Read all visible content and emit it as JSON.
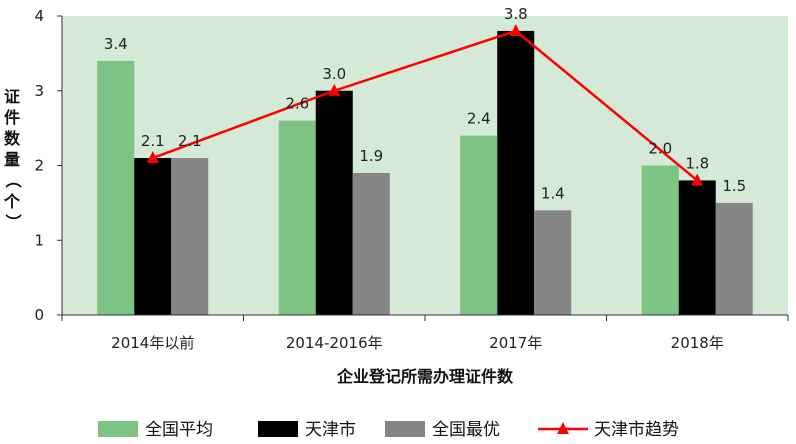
{
  "chart_data": {
    "type": "bar",
    "title": "",
    "xlabel": "企业登记所需办理证件数",
    "ylabel": "证件数量（个）",
    "ylim": [
      0,
      4
    ],
    "yticks": [
      0,
      1,
      2,
      3,
      4
    ],
    "grid": false,
    "legend_position": "bottom",
    "categories": [
      "2014年以前",
      "2014-2016年",
      "2017年",
      "2018年"
    ],
    "series": [
      {
        "name": "全国平均",
        "kind": "bar",
        "color": "#7dc383",
        "values": [
          3.4,
          2.6,
          2.4,
          2.0
        ]
      },
      {
        "name": "天津市",
        "kind": "bar",
        "color": "#000000",
        "values": [
          2.1,
          3.0,
          3.8,
          1.8
        ]
      },
      {
        "name": "全国最优",
        "kind": "bar",
        "color": "#868686",
        "values": [
          2.1,
          1.9,
          1.4,
          1.5
        ]
      },
      {
        "name": "天津市趋势",
        "kind": "line",
        "color": "#ff0000",
        "marker": "triangle",
        "values": [
          2.1,
          3.0,
          3.8,
          1.8
        ]
      }
    ],
    "plot_background": "#d4ead6"
  }
}
